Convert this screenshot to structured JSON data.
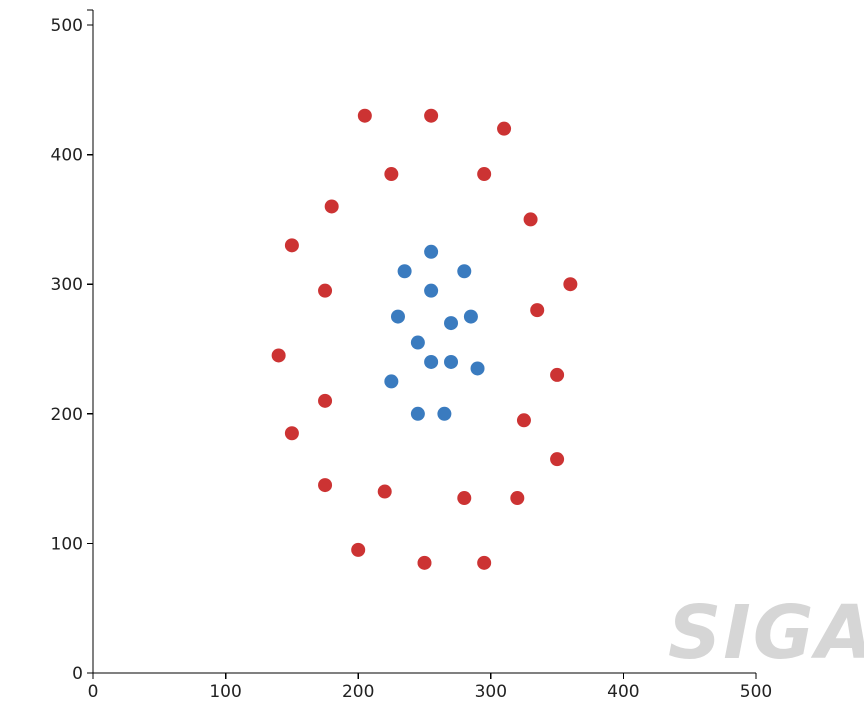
{
  "chart_data": {
    "type": "scatter",
    "title": "",
    "xlabel": "",
    "ylabel": "",
    "xlim": [
      0,
      500
    ],
    "ylim": [
      0,
      500
    ],
    "x_ticks": [
      "0",
      "100",
      "200",
      "300",
      "400",
      "500"
    ],
    "y_ticks": [
      "0",
      "100",
      "200",
      "300",
      "400",
      "500"
    ],
    "grid": false,
    "legend": false,
    "series": [
      {
        "color": "#cc3333",
        "points": [
          [
            205,
            430
          ],
          [
            255,
            430
          ],
          [
            310,
            420
          ],
          [
            225,
            385
          ],
          [
            295,
            385
          ],
          [
            180,
            360
          ],
          [
            330,
            350
          ],
          [
            150,
            330
          ],
          [
            360,
            300
          ],
          [
            175,
            295
          ],
          [
            335,
            280
          ],
          [
            140,
            245
          ],
          [
            350,
            230
          ],
          [
            175,
            210
          ],
          [
            325,
            195
          ],
          [
            150,
            185
          ],
          [
            350,
            165
          ],
          [
            175,
            145
          ],
          [
            220,
            140
          ],
          [
            280,
            135
          ],
          [
            320,
            135
          ],
          [
            200,
            95
          ],
          [
            250,
            85
          ],
          [
            295,
            85
          ]
        ]
      },
      {
        "color": "#3a7bbf",
        "points": [
          [
            255,
            325
          ],
          [
            235,
            310
          ],
          [
            280,
            310
          ],
          [
            255,
            295
          ],
          [
            230,
            275
          ],
          [
            285,
            275
          ],
          [
            270,
            270
          ],
          [
            245,
            255
          ],
          [
            255,
            240
          ],
          [
            270,
            240
          ],
          [
            290,
            235
          ],
          [
            225,
            225
          ],
          [
            245,
            200
          ],
          [
            265,
            200
          ]
        ]
      }
    ]
  },
  "watermark": {
    "text": "SIGAI"
  }
}
